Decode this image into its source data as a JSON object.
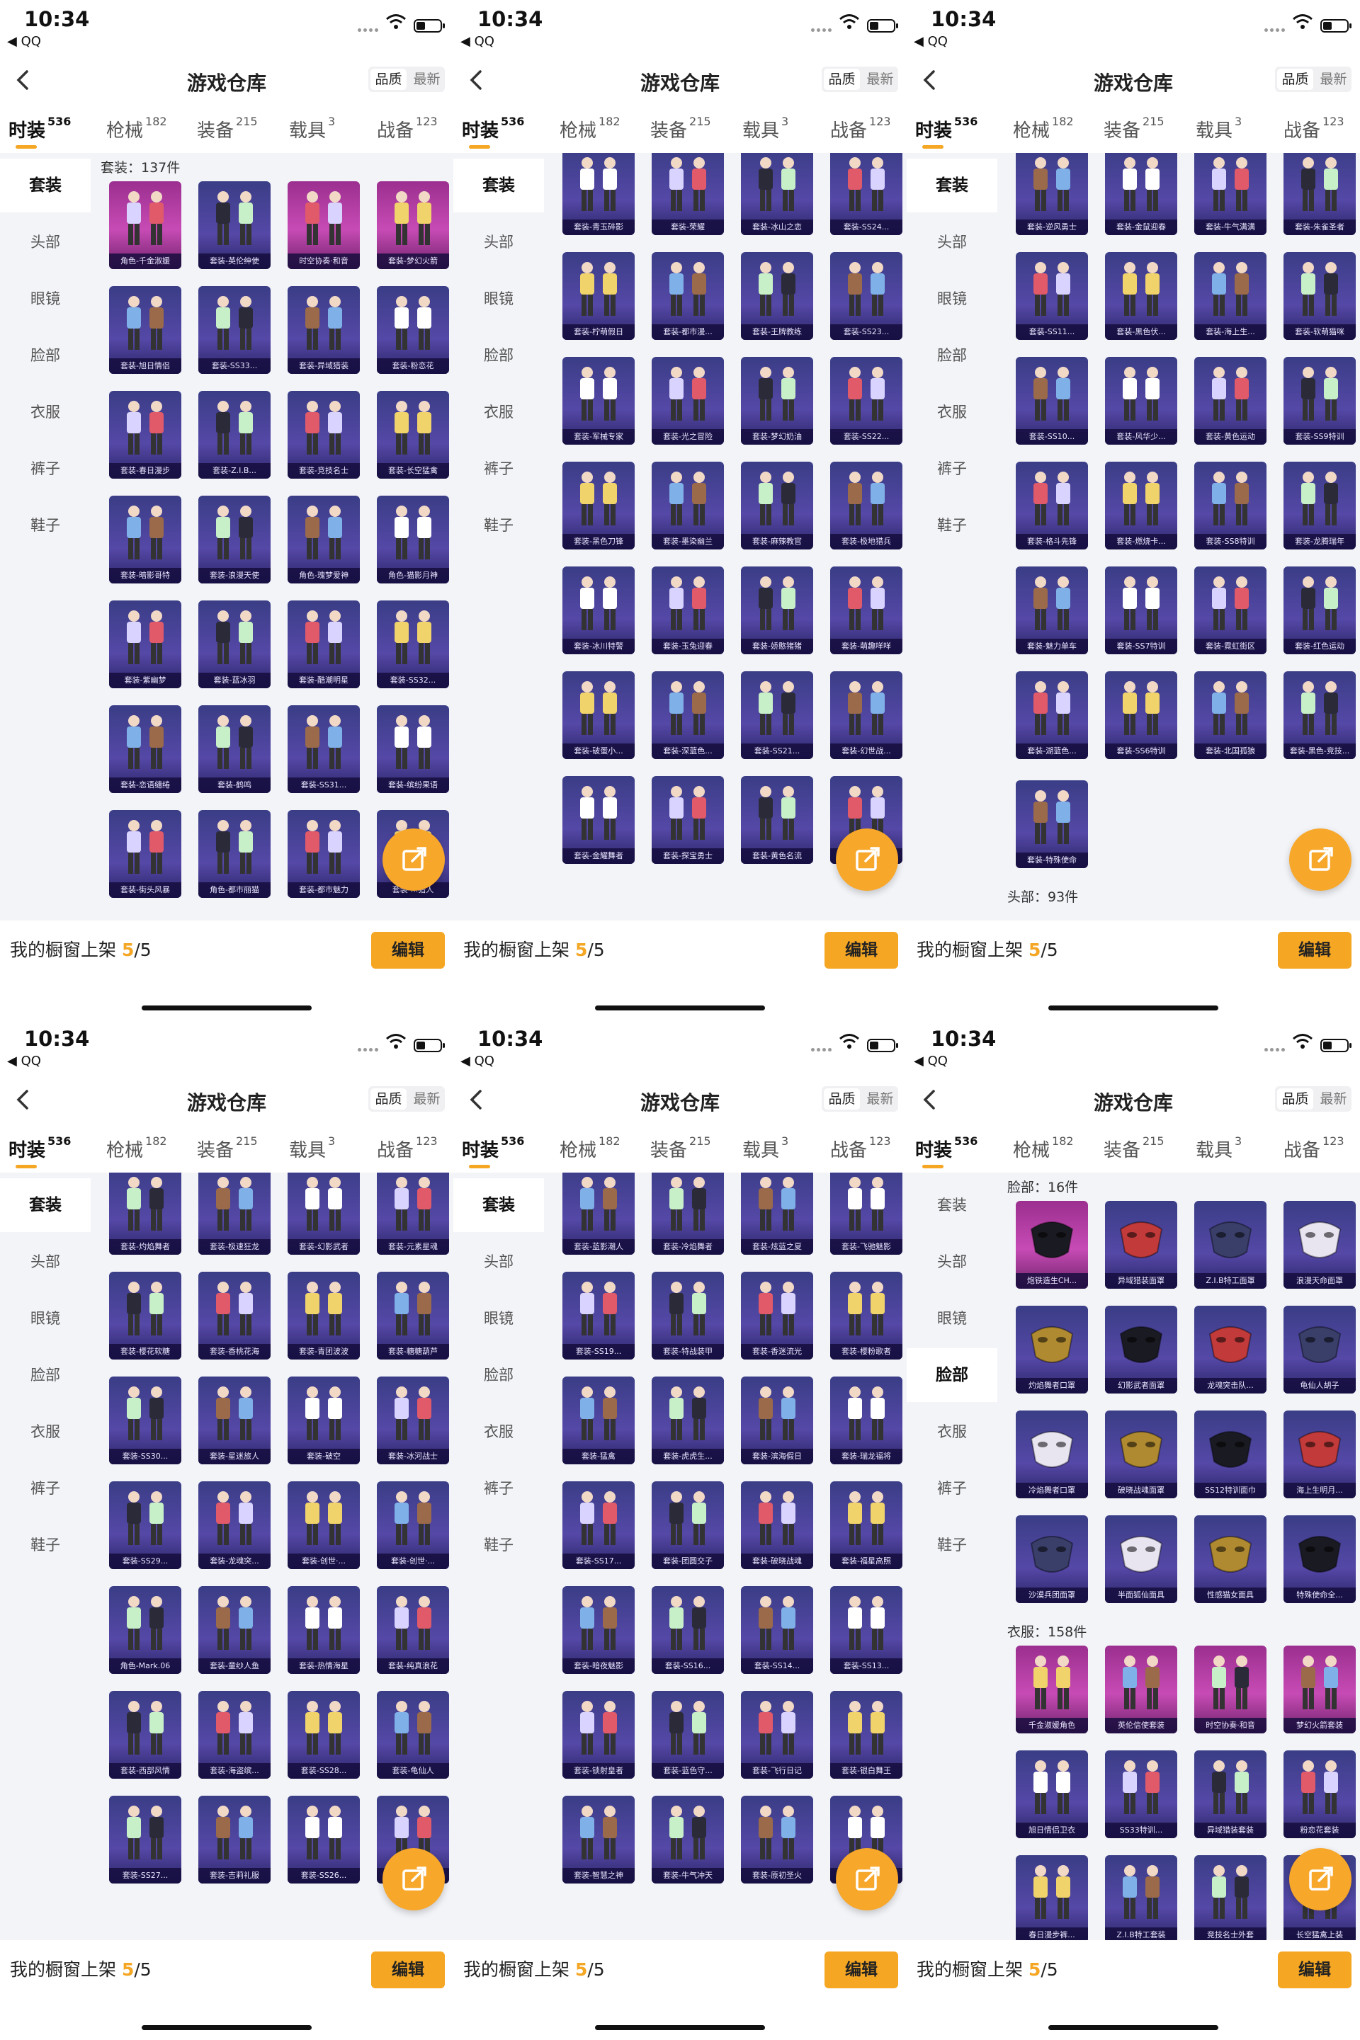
{
  "status": {
    "time": "10:34",
    "back_app": "◀ QQ"
  },
  "header": {
    "title": "游戏仓库",
    "sort_options": [
      "品质",
      "最新"
    ]
  },
  "tabs": [
    {
      "label": "时装",
      "count": "536"
    },
    {
      "label": "枪械",
      "count": "182"
    },
    {
      "label": "装备",
      "count": "215"
    },
    {
      "label": "载具",
      "count": "3"
    },
    {
      "label": "战备",
      "count": "123"
    }
  ],
  "sidenav": [
    "套装",
    "头部",
    "眼镜",
    "脸部",
    "衣服",
    "裤子",
    "鞋子"
  ],
  "footer": {
    "label": "我的橱窗上架",
    "count": "5",
    "total": "/5",
    "edit": "编辑"
  },
  "panels": [
    {
      "active_side": 0,
      "sections": [
        {
          "label": "套装：137件",
          "items": [
            "角色-千金淑媛",
            "套装-英伦绅使",
            "时空协奏·和音",
            "套装-梦幻火箭",
            "套装-旭日情侣",
            "套装-SS33...",
            "套装-异域猎装",
            "套装-粉恋花",
            "套装-春日漫步",
            "套装-Z.I.B...",
            "套装-竞技名士",
            "套装-长空猛禽",
            "套装-暗影哥特",
            "套装-浪漫天使",
            "角色-瑰梦爱神",
            "角色-猫影月神",
            "套装-紫幽梦",
            "套装-蓝冰羽",
            "套装-酷潮明星",
            "套装-SS32...",
            "套装-恋语缱绻",
            "套装-鹤鸣",
            "套装-SS31...",
            "套装-缤纷果语",
            "套装-街头风暴",
            "角色-都市丽猫",
            "套装-都市魅力",
            "套装-...猎人"
          ]
        }
      ]
    },
    {
      "active_side": 0,
      "sections": [
        {
          "label": "",
          "items": [
            "套装-青玉碎影",
            "套装-荣耀",
            "套装-冰山之恋",
            "套装-SS24...",
            "套装-柠萌假日",
            "套装-都市漫...",
            "套装-王牌教练",
            "套装-SS23...",
            "套装-军械专家",
            "套装-光之冒险",
            "套装-梦幻奶油",
            "套装-SS22...",
            "套装-黑色刀锋",
            "套装-墨染幽兰",
            "套装-麻辣教官",
            "套装-极地猎兵",
            "套装-冰川特警",
            "套装-玉兔迎春",
            "套装-娇憨猪猪",
            "套装-萌趣咩咩",
            "套装-破蛋小...",
            "套装-深蓝色...",
            "套装-SS21...",
            "套装-幻世战...",
            "套装-金耀舞者",
            "套装-探宝勇士",
            "套装-黄色名流",
            "套装-..."
          ]
        }
      ]
    },
    {
      "active_side": 0,
      "sections": [
        {
          "label": "",
          "items": [
            "套装-逆风勇士",
            "套装-金鼠迎春",
            "套装-牛气满满",
            "套装-朱雀圣者",
            "套装-SS11...",
            "套装-黑色伏...",
            "套装-海上生...",
            "套装-软萌猫咪",
            "套装-SS10...",
            "套装-风华少...",
            "套装-黄色运动",
            "套装-SS9特训",
            "套装-格斗先锋",
            "套装-燃烧卡...",
            "套装-SS8特训",
            "套装-龙腾瑞年",
            "套装-魅力单车",
            "套装-SS7特训",
            "套装-霓虹街区",
            "套装-红色运动",
            "套装-湖蓝色...",
            "套装-SS6特训",
            "套装-北国孤狼",
            "套装-黑色-竞技..."
          ]
        },
        {
          "label": "",
          "items": [
            "套装-特殊使命"
          ]
        },
        {
          "label": "头部：93件",
          "items": []
        }
      ]
    },
    {
      "active_side": 0,
      "sections": [
        {
          "label": "",
          "items": [
            "套装-灼焰舞者",
            "套装-极速狂龙",
            "套装-幻影武者",
            "套装-元素星魂",
            "套装-樱花软糖",
            "套装-香桃花海",
            "套装-青团波波",
            "套装-糖糖葫芦",
            "套装-SS30...",
            "套装-星迷旅人",
            "套装-破空",
            "套装-冰河战士",
            "套装-SS29...",
            "套装-龙魂突...",
            "套装-创世·...",
            "套装-创世·...",
            "角色-Mark.06",
            "套装-童纱人鱼",
            "套装-热情海星",
            "套装-纯真浪花",
            "套装-西部风情",
            "套装-海盗缤...",
            "套装-SS28...",
            "套装-龟仙人",
            "套装-SS27...",
            "套装-吉莉礼服",
            "套装-SS26...",
            "套装-..."
          ]
        }
      ]
    },
    {
      "active_side": 0,
      "sections": [
        {
          "label": "",
          "items": [
            "套装-蓝影潮人",
            "套装-冷焰舞者",
            "套装-炫蓝之夏",
            "套装-飞驰魅影",
            "套装-SS19...",
            "套装-特战装甲",
            "套装-香迷流光",
            "套装-樱粉歌者",
            "套装-猛禽",
            "套装-虎虎生...",
            "套装-滨海假日",
            "套装-瑞龙福将",
            "套装-SS17...",
            "套装-团圆交子",
            "套装-破晓战魂",
            "套装-福星高照",
            "套装-暗夜魅影",
            "套装-SS16...",
            "套装-SS14...",
            "套装-SS13...",
            "套装-锁射皇者",
            "套装-蓝色守...",
            "套装-飞行日记",
            "套装-银白舞王",
            "套装-智慧之神",
            "套装-牛气冲天",
            "套装-原初圣火",
            "套装-..."
          ]
        }
      ]
    },
    {
      "active_side": 3,
      "sections": [
        {
          "label": "脸部：16件",
          "items": [
            "炮铁造生CH...",
            "异域猎装面罩",
            "Z.I.B特工面罩",
            "浪漫天命面罩",
            "灼焰舞者口罩",
            "幻影武者面罩",
            "龙魂突击队...",
            "龟仙人胡子",
            "冷焰舞者口罩",
            "破晓战魂面罩",
            "SS12特训面巾",
            "海上生明月...",
            "沙漠兵团面罩",
            "半面狐仙面具",
            "性感猫女面具",
            "特殊使命全..."
          ]
        },
        {
          "label": "衣服：158件",
          "items": [
            "千金淑媛角色",
            "英伦信使套装",
            "时空协奏·和音",
            "梦幻火箭套装",
            "旭日情侣卫衣",
            "SS33特训...",
            "异域猎装套装",
            "粉恋花套装",
            "春日漫步裤...",
            "Z.I.B特工套装",
            "竞技名士外套",
            "长空猛禽上装"
          ]
        }
      ]
    }
  ]
}
